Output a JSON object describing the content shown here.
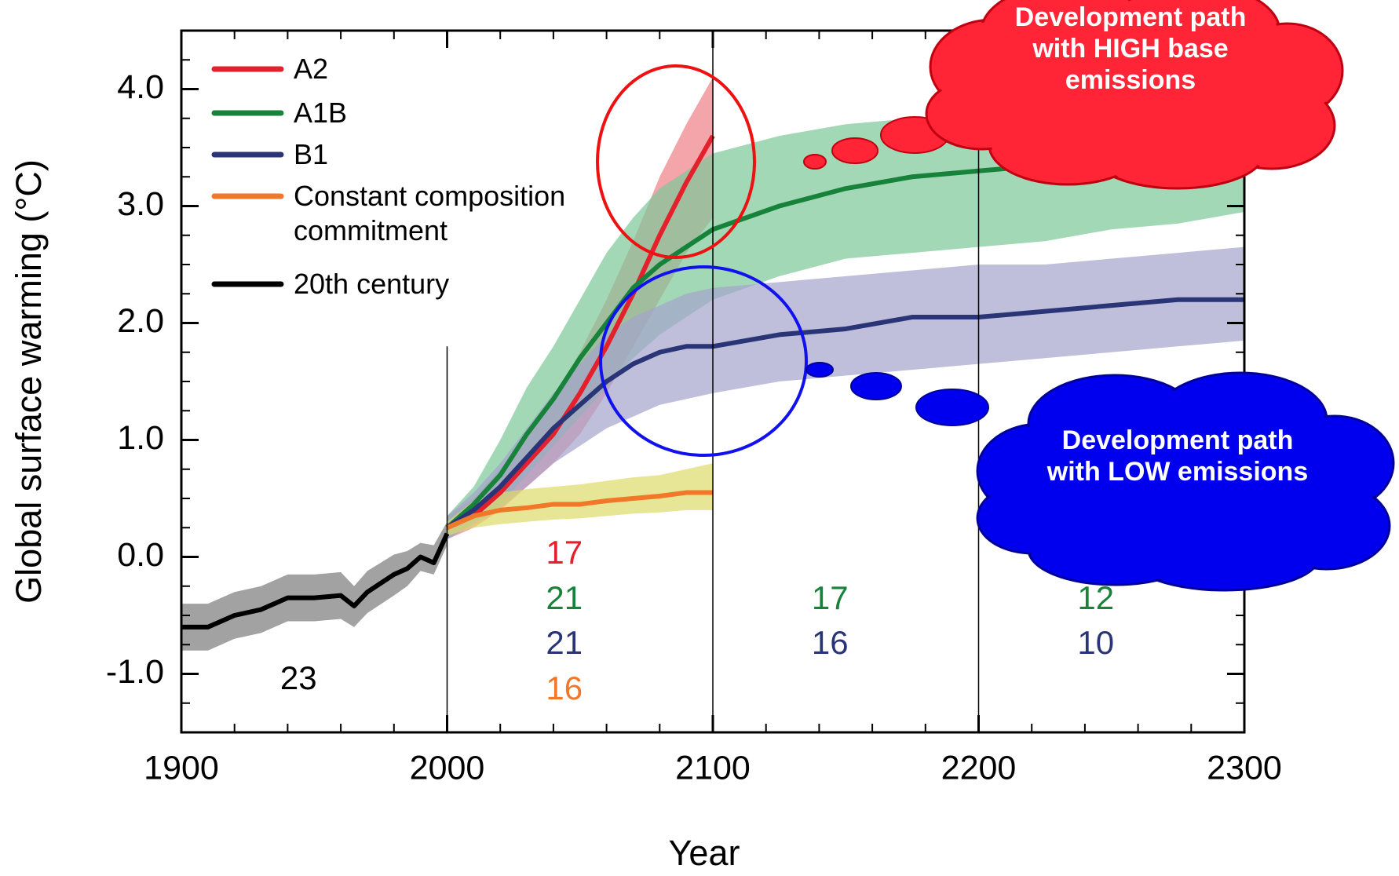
{
  "chart_data": {
    "type": "line",
    "x_label": "Year",
    "y_label": "Global surface warming (°C)",
    "xlim": [
      1900,
      2300
    ],
    "ylim": [
      -1.5,
      4.5
    ],
    "xticks": [
      1900,
      2000,
      2100,
      2200,
      2300
    ],
    "yticks": [
      {
        "value": -1,
        "label": "-1.0"
      },
      {
        "value": 0,
        "label": "0.0"
      },
      {
        "value": 1,
        "label": "1.0"
      },
      {
        "value": 2,
        "label": "2.0"
      },
      {
        "value": 3,
        "label": "3.0"
      },
      {
        "value": 4,
        "label": "4.0"
      }
    ],
    "period_boundaries": [
      2000,
      2100,
      2200
    ],
    "legend": "top-left",
    "series": [
      {
        "name": "A2",
        "color": "#e3202c",
        "band_color": "#ef7f86",
        "x": [
          2000,
          2010,
          2020,
          2030,
          2040,
          2050,
          2060,
          2070,
          2080,
          2090,
          2100
        ],
        "values": [
          0.25,
          0.35,
          0.55,
          0.8,
          1.05,
          1.4,
          1.8,
          2.25,
          2.75,
          3.2,
          3.6
        ],
        "lower": [
          0.15,
          0.25,
          0.4,
          0.6,
          0.8,
          1.05,
          1.4,
          1.8,
          2.2,
          2.6,
          2.9
        ],
        "upper": [
          0.35,
          0.5,
          0.75,
          1.05,
          1.35,
          1.75,
          2.2,
          2.7,
          3.25,
          3.7,
          4.1
        ],
        "model_counts": [
          null,
          17,
          null,
          null
        ]
      },
      {
        "name": "A1B",
        "color": "#17823a",
        "band_color": "#7cc898",
        "x": [
          2000,
          2010,
          2020,
          2030,
          2040,
          2050,
          2060,
          2070,
          2080,
          2090,
          2100,
          2125,
          2150,
          2175,
          2200,
          2225,
          2250,
          2275,
          2300
        ],
        "values": [
          0.25,
          0.45,
          0.7,
          1.05,
          1.35,
          1.7,
          2.0,
          2.3,
          2.5,
          2.65,
          2.8,
          3.0,
          3.15,
          3.25,
          3.3,
          3.35,
          3.4,
          3.45,
          3.5
        ],
        "lower": [
          0.15,
          0.3,
          0.45,
          0.7,
          0.95,
          1.2,
          1.45,
          1.7,
          1.9,
          2.05,
          2.2,
          2.4,
          2.55,
          2.6,
          2.65,
          2.7,
          2.8,
          2.85,
          2.95
        ],
        "upper": [
          0.35,
          0.6,
          1.0,
          1.45,
          1.8,
          2.2,
          2.6,
          2.9,
          3.15,
          3.3,
          3.45,
          3.6,
          3.7,
          3.75,
          3.8,
          3.9,
          3.95,
          4.0,
          4.0
        ],
        "model_counts": [
          null,
          21,
          17,
          12
        ]
      },
      {
        "name": "B1",
        "color": "#2a3577",
        "band_color": "#a4a4cc",
        "x": [
          2000,
          2010,
          2020,
          2030,
          2040,
          2050,
          2060,
          2070,
          2080,
          2090,
          2100,
          2125,
          2150,
          2175,
          2200,
          2225,
          2250,
          2275,
          2300
        ],
        "values": [
          0.25,
          0.4,
          0.6,
          0.85,
          1.1,
          1.3,
          1.5,
          1.65,
          1.75,
          1.8,
          1.8,
          1.9,
          1.95,
          2.05,
          2.05,
          2.1,
          2.15,
          2.2,
          2.2
        ],
        "lower": [
          0.15,
          0.28,
          0.42,
          0.6,
          0.8,
          0.95,
          1.1,
          1.2,
          1.3,
          1.35,
          1.4,
          1.5,
          1.55,
          1.6,
          1.65,
          1.7,
          1.75,
          1.8,
          1.85
        ],
        "upper": [
          0.35,
          0.55,
          0.8,
          1.1,
          1.4,
          1.65,
          1.9,
          2.05,
          2.15,
          2.25,
          2.3,
          2.35,
          2.4,
          2.45,
          2.5,
          2.5,
          2.55,
          2.6,
          2.65
        ],
        "model_counts": [
          null,
          21,
          16,
          10
        ]
      },
      {
        "name": "Constant composition commitment",
        "color": "#f07828",
        "band_color": "#dcdc6a",
        "x": [
          2000,
          2010,
          2020,
          2030,
          2040,
          2050,
          2060,
          2070,
          2080,
          2090,
          2100
        ],
        "values": [
          0.25,
          0.35,
          0.4,
          0.42,
          0.45,
          0.45,
          0.48,
          0.5,
          0.52,
          0.55,
          0.55
        ],
        "lower": [
          0.18,
          0.25,
          0.28,
          0.3,
          0.32,
          0.33,
          0.35,
          0.37,
          0.38,
          0.4,
          0.4
        ],
        "upper": [
          0.3,
          0.48,
          0.55,
          0.58,
          0.6,
          0.62,
          0.65,
          0.68,
          0.7,
          0.75,
          0.8
        ],
        "model_counts": [
          null,
          16,
          null,
          null
        ]
      },
      {
        "name": "20th century",
        "color": "#000000",
        "band_color": "#7a7a7a",
        "x": [
          1900,
          1910,
          1920,
          1930,
          1940,
          1950,
          1960,
          1965,
          1970,
          1980,
          1985,
          1990,
          1995,
          2000
        ],
        "values": [
          -0.6,
          -0.6,
          -0.5,
          -0.45,
          -0.35,
          -0.35,
          -0.33,
          -0.42,
          -0.3,
          -0.15,
          -0.1,
          0.0,
          -0.05,
          0.2
        ],
        "lower": [
          -0.8,
          -0.8,
          -0.7,
          -0.65,
          -0.55,
          -0.55,
          -0.53,
          -0.6,
          -0.48,
          -0.33,
          -0.25,
          -0.12,
          -0.15,
          0.1
        ],
        "upper": [
          -0.4,
          -0.4,
          -0.3,
          -0.25,
          -0.15,
          -0.15,
          -0.13,
          -0.25,
          -0.12,
          0.02,
          0.05,
          0.12,
          0.1,
          0.3
        ],
        "model_counts": [
          23,
          null,
          null,
          null
        ]
      }
    ],
    "annotations": [
      "Development path with HIGH base emissions",
      "Development path with LOW emissions"
    ]
  }
}
